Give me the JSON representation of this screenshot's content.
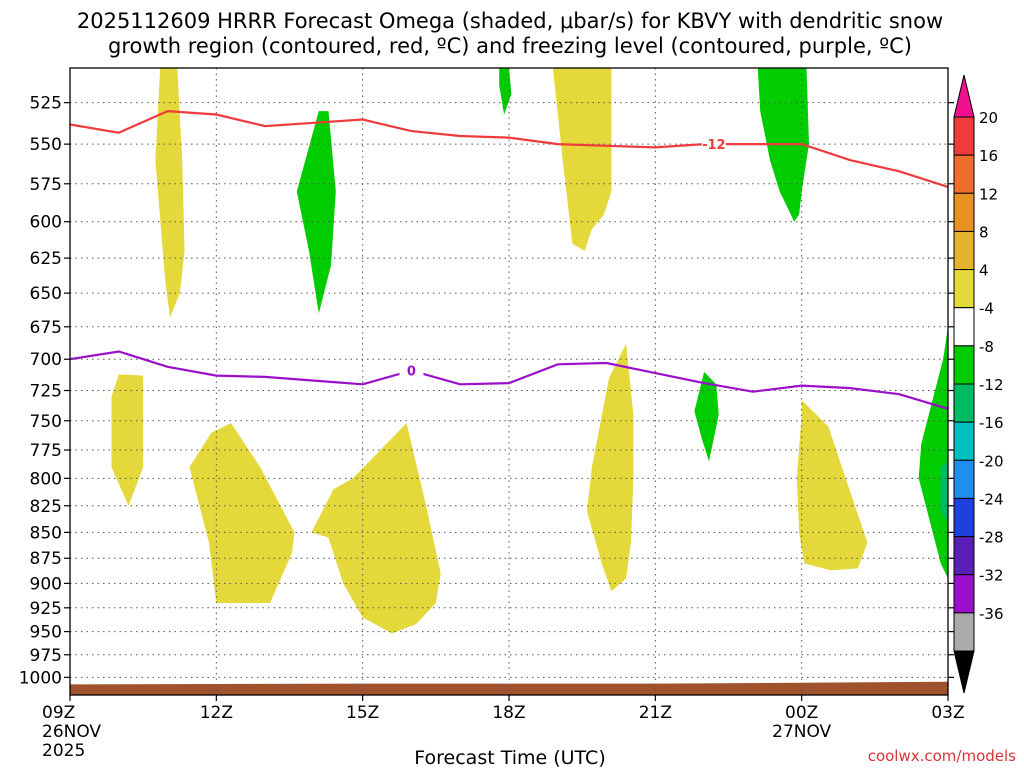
{
  "chart_data": {
    "type": "time-height cross-section",
    "title_line1": "2025112609 HRRR Forecast Omega (shaded, μbar/s) for KBVY with dendritic snow",
    "title_line2": "growth region (contoured, red, ºC) and freezing level (contoured, purple, ºC)",
    "xlabel": "Forecast Time (UTC)",
    "credit": "coolwx.com/models",
    "x_range_hours": [
      0,
      18
    ],
    "y_range_hpa": [
      505,
      1020
    ],
    "pressure_levels": [
      525,
      550,
      575,
      600,
      625,
      650,
      675,
      700,
      725,
      750,
      775,
      800,
      825,
      850,
      875,
      900,
      925,
      950,
      975,
      1000
    ],
    "x_ticks": [
      {
        "hour": 0,
        "lines": [
          "09Z",
          "26NOV",
          "2025"
        ]
      },
      {
        "hour": 3,
        "lines": [
          "12Z"
        ]
      },
      {
        "hour": 6,
        "lines": [
          "15Z"
        ]
      },
      {
        "hour": 9,
        "lines": [
          "18Z"
        ]
      },
      {
        "hour": 12,
        "lines": [
          "21Z"
        ]
      },
      {
        "hour": 15,
        "lines": [
          "00Z",
          "27NOV"
        ]
      },
      {
        "hour": 18,
        "lines": [
          "03Z"
        ]
      }
    ],
    "colorbar": {
      "labels": [
        "20",
        "16",
        "12",
        "8",
        "4",
        "-4",
        "-8",
        "-12",
        "-16",
        "-20",
        "-24",
        "-28",
        "-32",
        "-36"
      ],
      "bins": [
        "#ef3b3b",
        "#ef6e2b",
        "#e99222",
        "#e4b22b",
        "#e4d83a",
        "#ffffff",
        "#00cc00",
        "#00bb66",
        "#00c0c0",
        "#1f8fef",
        "#1f3fdf",
        "#5a1fb4",
        "#9b0fcc",
        "#aaaaaa"
      ],
      "top_arrow": "#ef0f8f",
      "bottom_arrow": "#000000"
    },
    "omega_regions": [
      {
        "sign": "positive",
        "range": "4 to 8",
        "color": "#e4d83a",
        "points": [
          [
            2.0,
            505
          ],
          [
            2.2,
            505
          ],
          [
            2.3,
            560
          ],
          [
            2.35,
            620
          ],
          [
            2.25,
            650
          ],
          [
            2.05,
            668
          ],
          [
            1.95,
            640
          ],
          [
            1.75,
            560
          ],
          [
            1.85,
            505
          ]
        ]
      },
      {
        "sign": "positive",
        "range": "4 to 8",
        "color": "#e4d83a",
        "points": [
          [
            1.0,
            712
          ],
          [
            1.5,
            713
          ],
          [
            1.5,
            790
          ],
          [
            1.2,
            825
          ],
          [
            0.85,
            790
          ],
          [
            0.85,
            730
          ]
        ]
      },
      {
        "sign": "positive",
        "range": "4 to 8",
        "color": "#e4d83a",
        "points": [
          [
            2.9,
            760
          ],
          [
            3.3,
            752
          ],
          [
            3.9,
            790
          ],
          [
            4.6,
            850
          ],
          [
            4.55,
            870
          ],
          [
            4.1,
            920
          ],
          [
            3.0,
            920
          ],
          [
            2.85,
            860
          ],
          [
            2.45,
            790
          ]
        ]
      },
      {
        "sign": "positive",
        "range": "4 to 8",
        "color": "#e4d83a",
        "points": [
          [
            5.4,
            810
          ],
          [
            5.8,
            800
          ],
          [
            6.9,
            752
          ],
          [
            7.3,
            825
          ],
          [
            7.6,
            890
          ],
          [
            7.5,
            920
          ],
          [
            7.1,
            942
          ],
          [
            6.6,
            952
          ],
          [
            6.0,
            935
          ],
          [
            5.6,
            900
          ],
          [
            5.3,
            855
          ],
          [
            4.95,
            850
          ]
        ]
      },
      {
        "sign": "positive",
        "range": "4 to 8",
        "color": "#e4d83a",
        "points": [
          [
            9.9,
            505
          ],
          [
            11.1,
            505
          ],
          [
            11.1,
            580
          ],
          [
            10.95,
            595
          ],
          [
            10.7,
            605
          ],
          [
            10.55,
            620
          ],
          [
            10.3,
            615
          ],
          [
            10.1,
            560
          ]
        ]
      },
      {
        "sign": "positive",
        "range": "4 to 8",
        "color": "#e4d83a",
        "points": [
          [
            11.05,
            715
          ],
          [
            11.4,
            688
          ],
          [
            11.55,
            745
          ],
          [
            11.55,
            800
          ],
          [
            11.5,
            860
          ],
          [
            11.4,
            895
          ],
          [
            11.1,
            908
          ],
          [
            10.9,
            880
          ],
          [
            10.6,
            830
          ],
          [
            10.7,
            790
          ]
        ]
      },
      {
        "sign": "positive",
        "range": "4 to 8",
        "color": "#e4d83a",
        "points": [
          [
            15.0,
            745
          ],
          [
            15.0,
            733
          ],
          [
            15.55,
            755
          ],
          [
            15.9,
            800
          ],
          [
            16.35,
            860
          ],
          [
            16.15,
            885
          ],
          [
            15.6,
            887
          ],
          [
            15.05,
            880
          ],
          [
            14.95,
            850
          ],
          [
            14.9,
            800
          ]
        ]
      },
      {
        "sign": "negative",
        "range": "-4 to -8",
        "color": "#00cc00",
        "points": [
          [
            5.1,
            530
          ],
          [
            5.3,
            530
          ],
          [
            5.45,
            580
          ],
          [
            5.35,
            630
          ],
          [
            5.1,
            665
          ],
          [
            4.9,
            620
          ],
          [
            4.65,
            580
          ]
        ]
      },
      {
        "sign": "negative",
        "range": "-4 to -8",
        "color": "#00cc00",
        "points": [
          [
            8.8,
            505
          ],
          [
            9.0,
            505
          ],
          [
            9.05,
            520
          ],
          [
            8.9,
            532
          ],
          [
            8.8,
            515
          ]
        ]
      },
      {
        "sign": "negative",
        "range": "-4 to -8",
        "color": "#00cc00",
        "points": [
          [
            14.1,
            505
          ],
          [
            15.1,
            505
          ],
          [
            15.15,
            550
          ],
          [
            15.0,
            580
          ],
          [
            14.95,
            595
          ],
          [
            14.85,
            600
          ],
          [
            14.55,
            580
          ],
          [
            14.35,
            560
          ],
          [
            14.15,
            530
          ]
        ]
      },
      {
        "sign": "negative",
        "range": "-4 to -8",
        "color": "#00cc00",
        "points": [
          [
            13.0,
            710
          ],
          [
            13.25,
            720
          ],
          [
            13.3,
            745
          ],
          [
            13.1,
            785
          ],
          [
            12.95,
            765
          ],
          [
            12.8,
            742
          ]
        ]
      },
      {
        "sign": "negative",
        "range": "-4 to -8",
        "color": "#00cc00",
        "points": [
          [
            18.0,
            675
          ],
          [
            18.0,
            895
          ],
          [
            17.85,
            880
          ],
          [
            17.4,
            800
          ],
          [
            17.45,
            770
          ],
          [
            17.7,
            730
          ],
          [
            17.9,
            700
          ]
        ]
      },
      {
        "sign": "negative",
        "range": "-8 to -12",
        "color": "#00bb66",
        "points": [
          [
            17.85,
            790
          ],
          [
            18.0,
            785
          ],
          [
            18.0,
            840
          ],
          [
            17.85,
            830
          ]
        ]
      }
    ],
    "contours": [
      {
        "name": "dendritic growth region",
        "label": "-12",
        "label_hour": 13.2,
        "color": "#ef3b3b",
        "points": [
          [
            0,
            538
          ],
          [
            1,
            543
          ],
          [
            2,
            530
          ],
          [
            3,
            532
          ],
          [
            4,
            539
          ],
          [
            5,
            537
          ],
          [
            6,
            535
          ],
          [
            7,
            542
          ],
          [
            8,
            545
          ],
          [
            9,
            546
          ],
          [
            10,
            550
          ],
          [
            11,
            551
          ],
          [
            12,
            552
          ],
          [
            13,
            550
          ],
          [
            14,
            550
          ],
          [
            15,
            550
          ],
          [
            16,
            560
          ],
          [
            17,
            567
          ],
          [
            18,
            577
          ]
        ]
      },
      {
        "name": "freezing level",
        "label": "0",
        "label_hour": 7.0,
        "color": "#9b0fcc",
        "points": [
          [
            0,
            700
          ],
          [
            1,
            694
          ],
          [
            2,
            706
          ],
          [
            3,
            713
          ],
          [
            4,
            714
          ],
          [
            5,
            717
          ],
          [
            6,
            720
          ],
          [
            7,
            709
          ],
          [
            8,
            720
          ],
          [
            9,
            719
          ],
          [
            10,
            704
          ],
          [
            11,
            703
          ],
          [
            12,
            711
          ],
          [
            13,
            719
          ],
          [
            14,
            726
          ],
          [
            15,
            721
          ],
          [
            16,
            723
          ],
          [
            17,
            728
          ],
          [
            18,
            740
          ]
        ]
      }
    ],
    "terrain": {
      "color": "#a0522d",
      "pressures": [
        1008,
        1007,
        1007,
        1005
      ]
    }
  }
}
